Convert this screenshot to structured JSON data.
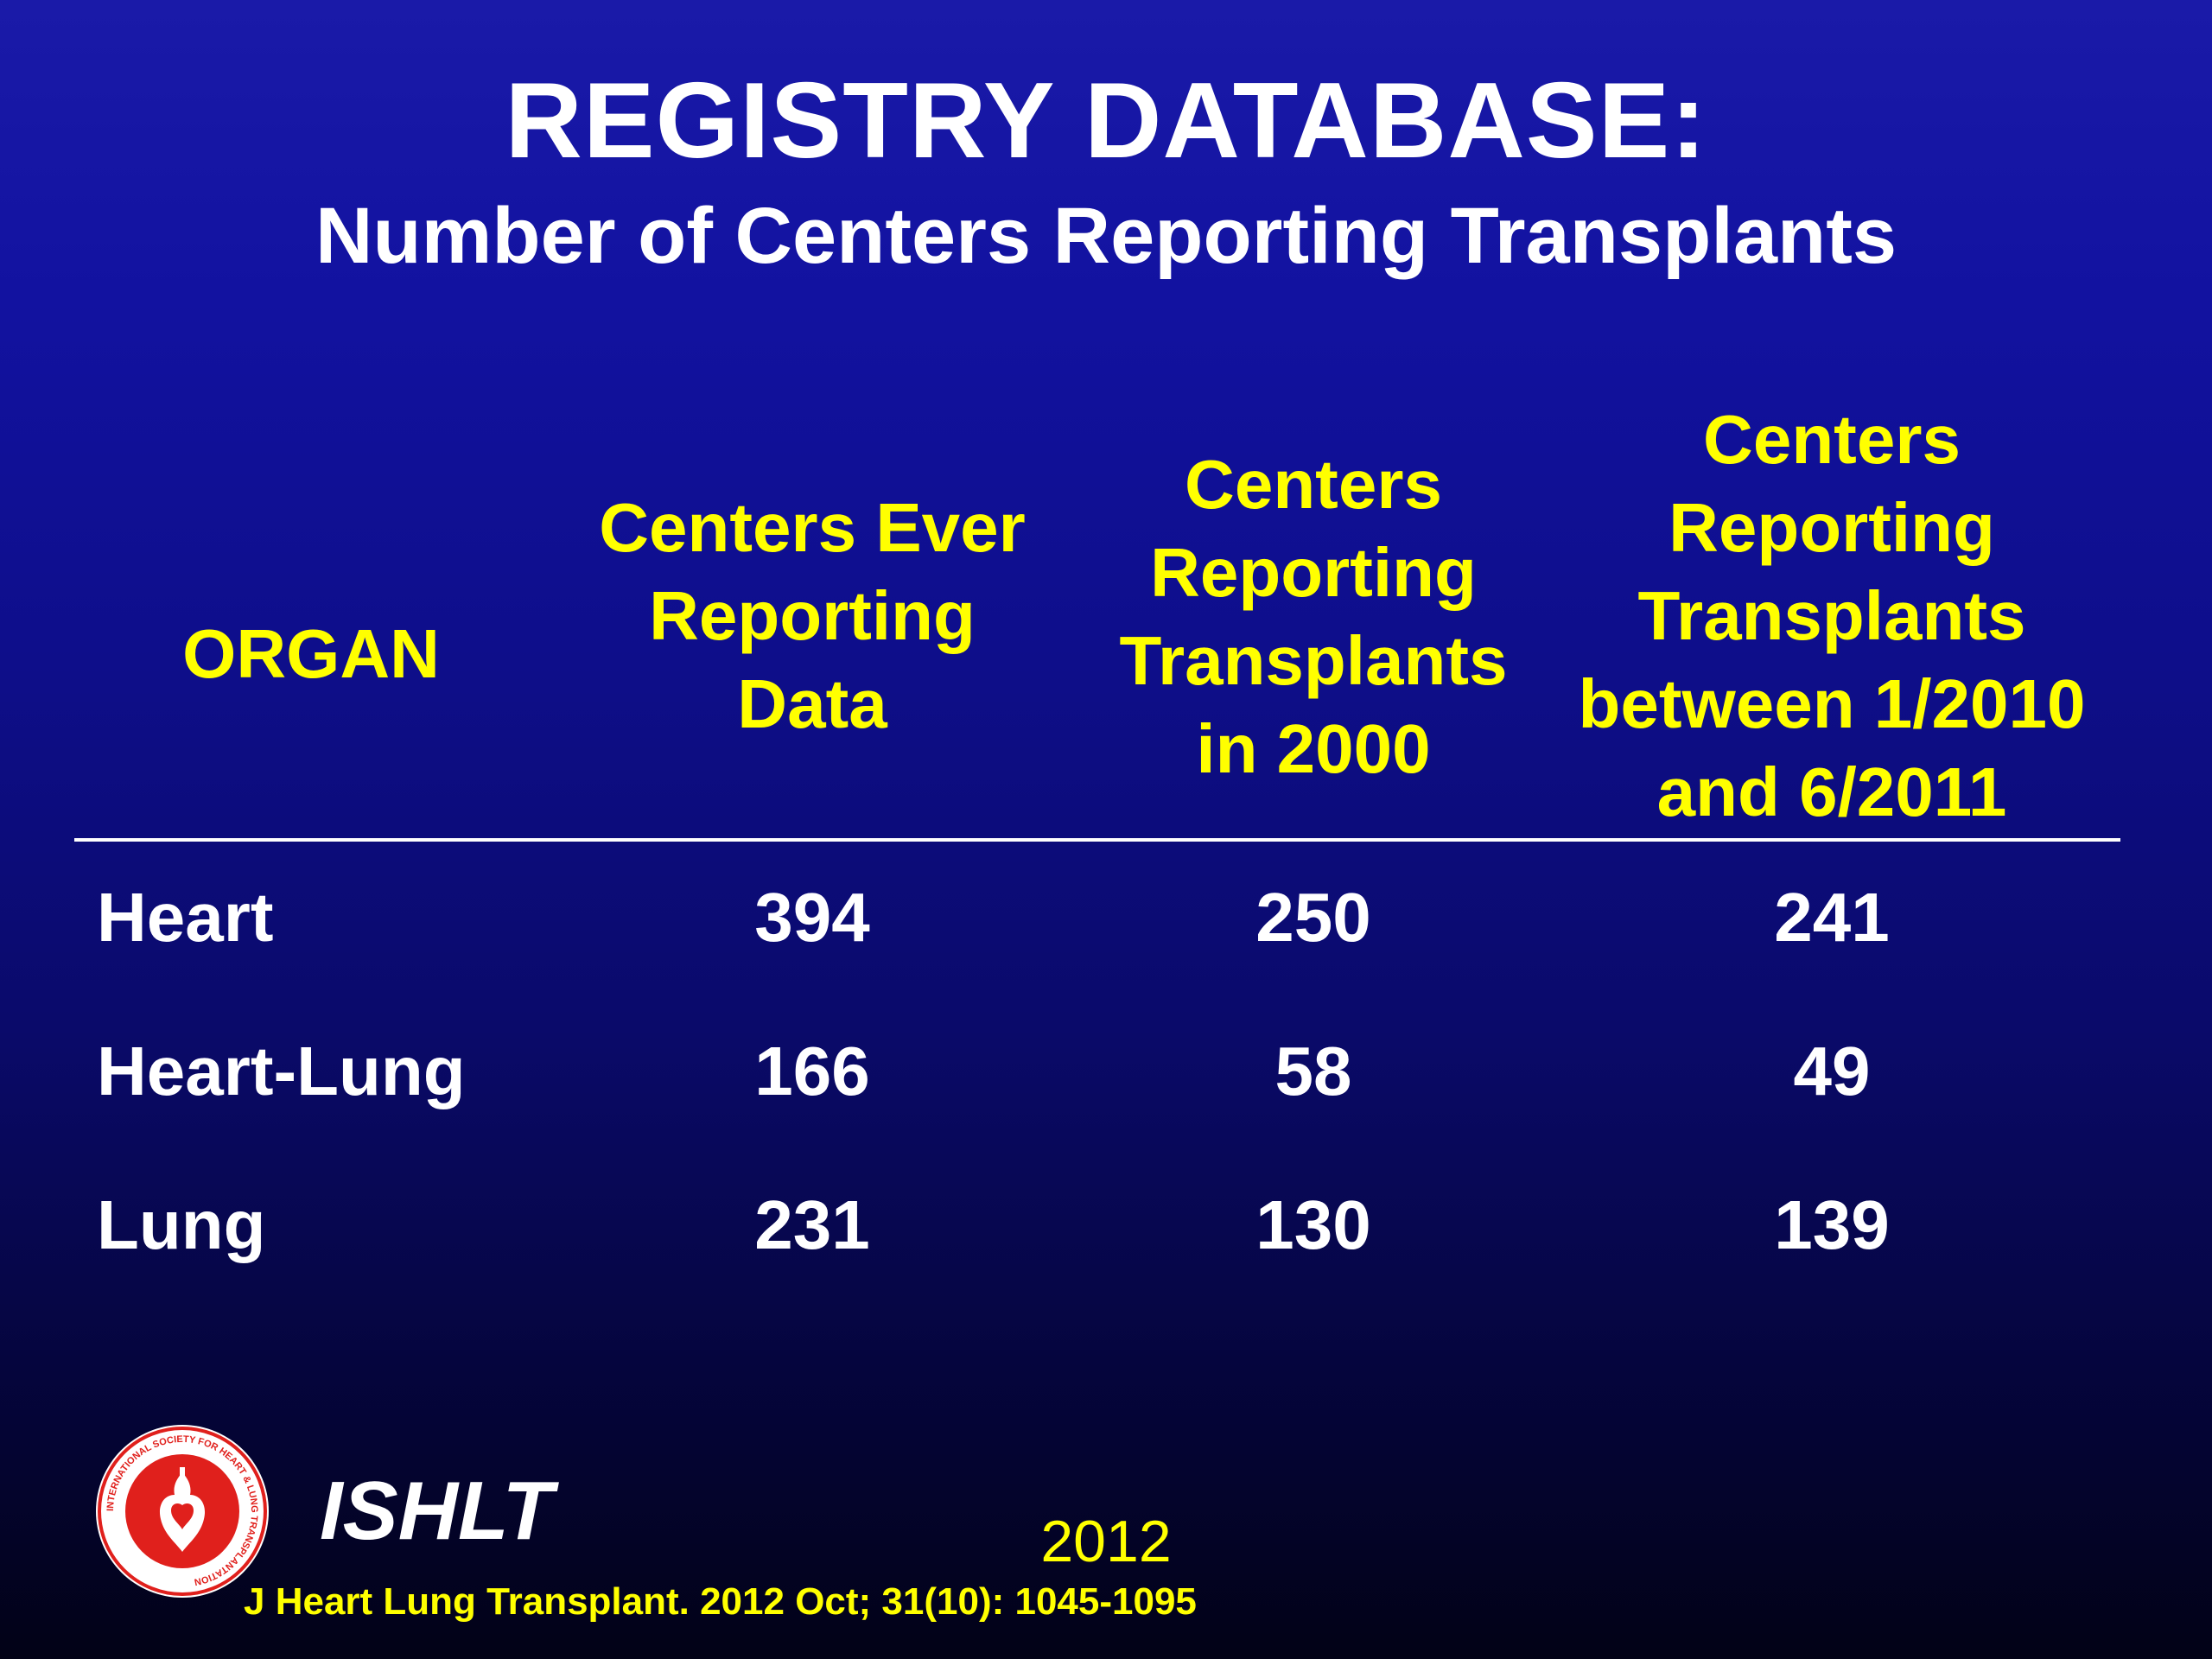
{
  "title": "REGISTRY DATABASE:",
  "subtitle": "Number of Centers Reporting Transplants",
  "table": {
    "headers": {
      "organ": "ORGAN",
      "col1": [
        "Centers Ever",
        "Reporting",
        "Data"
      ],
      "col2": [
        "Centers",
        "Reporting",
        "Transplants",
        "in 2000"
      ],
      "col3": [
        "Centers",
        "Reporting",
        "Transplants",
        "between 1/2010",
        "and 6/2011"
      ]
    },
    "rows": [
      {
        "organ": "Heart",
        "ever": "394",
        "in_2000": "250",
        "between_2010_2011": "241"
      },
      {
        "organ": "Heart-Lung",
        "ever": "166",
        "in_2000": "58",
        "between_2010_2011": "49"
      },
      {
        "organ": "Lung",
        "ever": "231",
        "in_2000": "130",
        "between_2010_2011": "139"
      }
    ]
  },
  "footer": {
    "logo_text": "INTERNATIONAL SOCIETY FOR HEART & LUNG TRANSPLANTATION",
    "brand": "ISHLT",
    "year": "2012",
    "citation": "J Heart Lung Transplant.  2012 Oct; 31(10): 1045-1095"
  },
  "colors": {
    "background_top": "#1a1aa8",
    "background_bottom": "#020216",
    "header_text": "#ffff00",
    "body_text": "#ffffff",
    "logo_red": "#e0201c"
  }
}
